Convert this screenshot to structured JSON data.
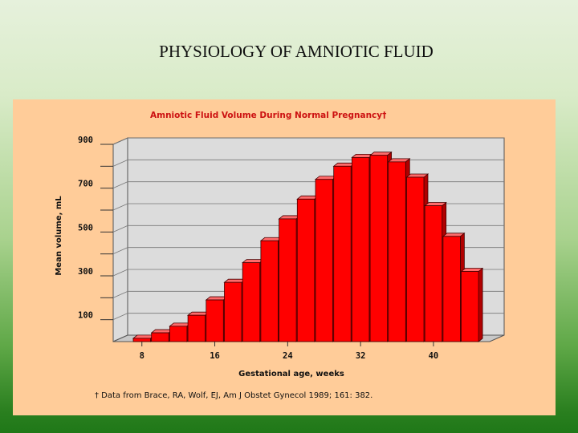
{
  "slide": {
    "title": "PHYSIOLOGY OF AMNIOTIC FLUID"
  },
  "chart_data": {
    "type": "bar",
    "title": "Amniotic Fluid Volume During Normal Pregnancy†",
    "xlabel": "Gestational age, weeks",
    "ylabel": "Mean volume, mL",
    "x": [
      8,
      10,
      12,
      14,
      16,
      18,
      20,
      22,
      24,
      26,
      28,
      30,
      32,
      34,
      36,
      38,
      40,
      42,
      44
    ],
    "values": [
      15,
      40,
      70,
      120,
      190,
      270,
      360,
      460,
      560,
      650,
      740,
      800,
      840,
      850,
      820,
      750,
      620,
      480,
      320
    ],
    "x_ticks": [
      8,
      16,
      24,
      32,
      40
    ],
    "y_ticks": [
      100,
      300,
      500,
      700,
      900
    ],
    "ylim": [
      0,
      900
    ],
    "grid": true,
    "bar_color": "#ff0000",
    "footnote": "† Data from Brace, RA, Wolf, EJ, Am J Obstet Gynecol 1989; 161: 382."
  }
}
